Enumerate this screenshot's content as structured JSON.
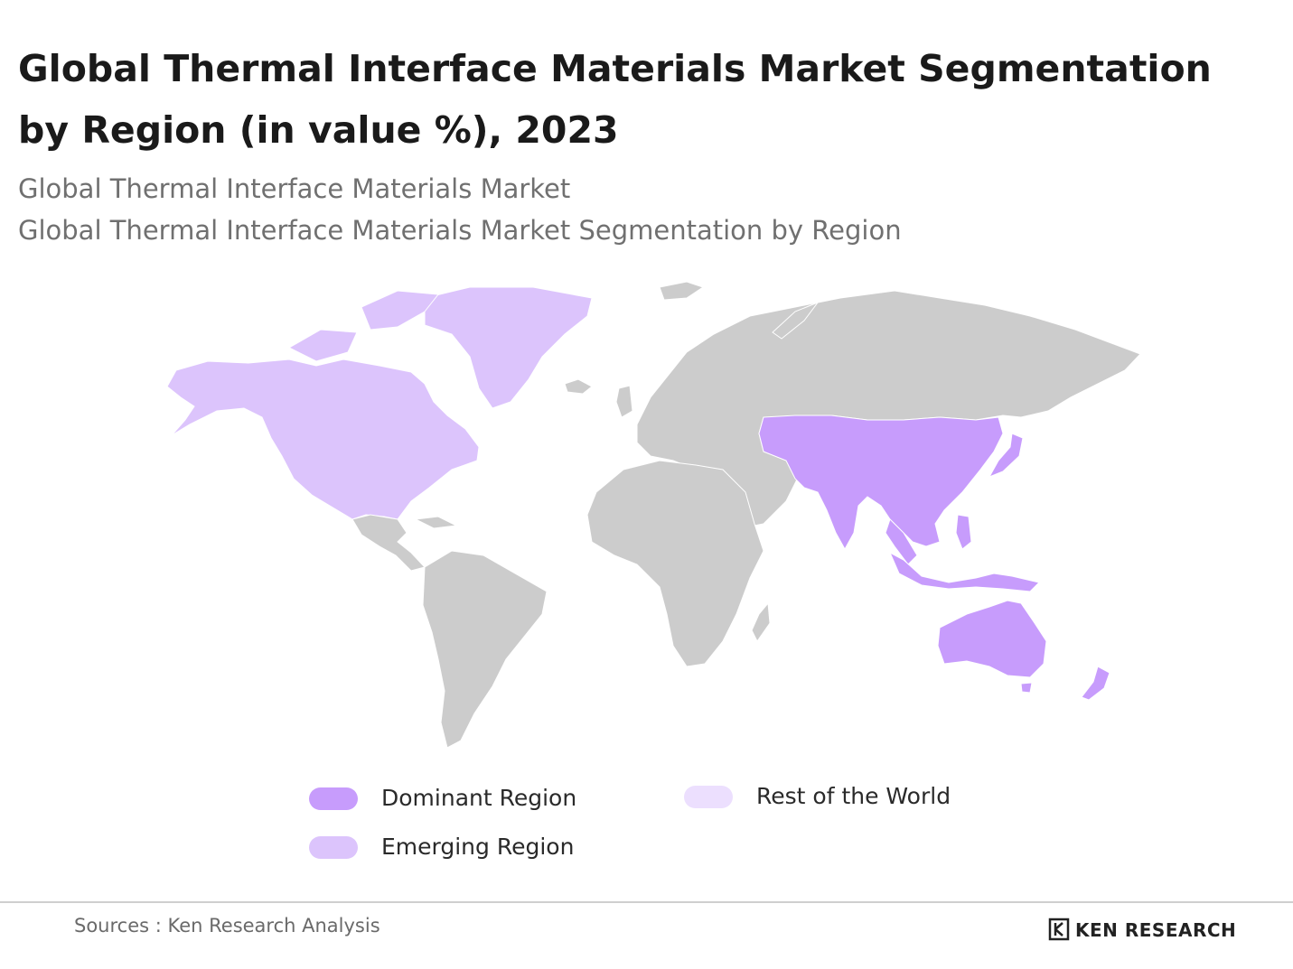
{
  "header": {
    "title": "Global Thermal Interface Materials Market Segmentation by Region (in value %), 2023",
    "subtitle_1": "Global Thermal Interface Materials Market",
    "subtitle_2": "Global Thermal Interface Materials Market Segmentation by Region"
  },
  "colors": {
    "dominant": "#c79cfc",
    "emerging": "#dcc4fc",
    "rest": "#ecdffe",
    "other_land": "#cccccc"
  },
  "legend": {
    "dominant": "Dominant Region",
    "emerging": "Emerging Region",
    "rest": "Rest of the World"
  },
  "map": {
    "regions": [
      {
        "name": "North America",
        "category": "emerging"
      },
      {
        "name": "Asia-Pacific",
        "category": "dominant"
      }
    ]
  },
  "footer": {
    "source": "Sources : Ken Research Analysis",
    "brand": "KEN RESEARCH"
  }
}
